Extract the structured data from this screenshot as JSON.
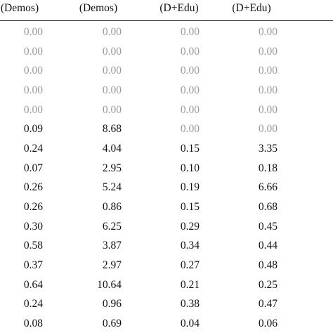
{
  "table": {
    "header": [
      "(Demos)",
      "(Demos)",
      "(D+Edu)",
      "(D+Edu)"
    ],
    "rows": [
      [
        "0.00",
        "0.00",
        "0.00",
        "0.00"
      ],
      [
        "0.00",
        "0.00",
        "0.00",
        "0.00"
      ],
      [
        "0.00",
        "0.00",
        "0.00",
        "0.00"
      ],
      [
        "0.00",
        "0.00",
        "0.00",
        "0.00"
      ],
      [
        "0.00",
        "0.00",
        "0.00",
        "0.00"
      ],
      [
        "0.09",
        "8.68",
        "0.00",
        "0.00"
      ],
      [
        "0.24",
        "4.04",
        "0.15",
        "3.35"
      ],
      [
        "0.07",
        "2.95",
        "0.10",
        "0.18"
      ],
      [
        "0.26",
        "5.24",
        "0.19",
        "6.66"
      ],
      [
        "0.26",
        "0.86",
        "0.15",
        "0.68"
      ],
      [
        "0.30",
        "6.25",
        "0.29",
        "0.45"
      ],
      [
        "0.58",
        "3.87",
        "0.34",
        "0.44"
      ],
      [
        "0.37",
        "2.97",
        "0.27",
        "0.48"
      ],
      [
        "0.64",
        "10.64",
        "0.21",
        "0.25"
      ],
      [
        "0.24",
        "0.96",
        "0.38",
        "0.47"
      ],
      [
        "0.08",
        "0.69",
        "0.04",
        "0.06"
      ]
    ],
    "muted_color": "#9a9a9a"
  }
}
